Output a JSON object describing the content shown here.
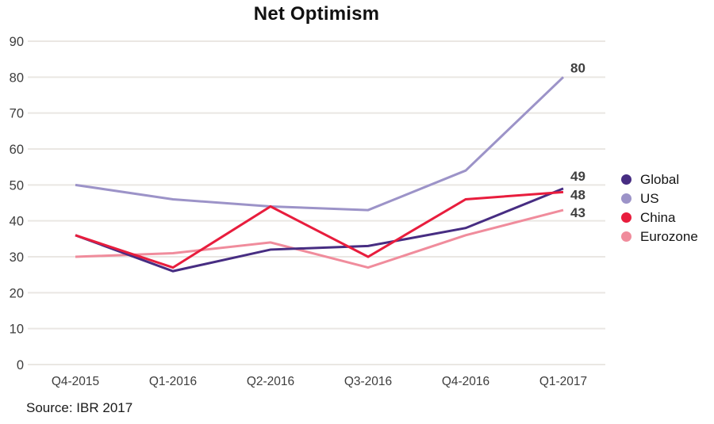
{
  "title": "Net Optimism",
  "source": "Source: IBR 2017",
  "chart_data": {
    "type": "line",
    "categories": [
      "Q4-2015",
      "Q1-2016",
      "Q2-2016",
      "Q3-2016",
      "Q4-2016",
      "Q1-2017"
    ],
    "series": [
      {
        "name": "Global",
        "color": "#472d82",
        "values": [
          36,
          26,
          32,
          33,
          38,
          49
        ],
        "end_label": "49"
      },
      {
        "name": "US",
        "color": "#9c93c8",
        "values": [
          50,
          46,
          44,
          43,
          54,
          80
        ],
        "end_label": "80"
      },
      {
        "name": "China",
        "color": "#e81d3d",
        "values": [
          36,
          27,
          44,
          30,
          46,
          48
        ],
        "end_label": "48"
      },
      {
        "name": "Eurozone",
        "color": "#f08c9c",
        "values": [
          30,
          31,
          34,
          27,
          36,
          43
        ],
        "end_label": "43"
      }
    ],
    "title": "Net Optimism",
    "xlabel": "",
    "ylabel": "",
    "ylim": [
      0,
      90
    ],
    "yticks": [
      0,
      10,
      20,
      30,
      40,
      50,
      60,
      70,
      80,
      90
    ],
    "grid": "horizontal",
    "legend_position": "right",
    "colors": {
      "grid_line": "#eae7e3",
      "tick_text": "#3d3d3d",
      "end_label_text": "#3f3f3f",
      "background": "#ffffff"
    }
  }
}
